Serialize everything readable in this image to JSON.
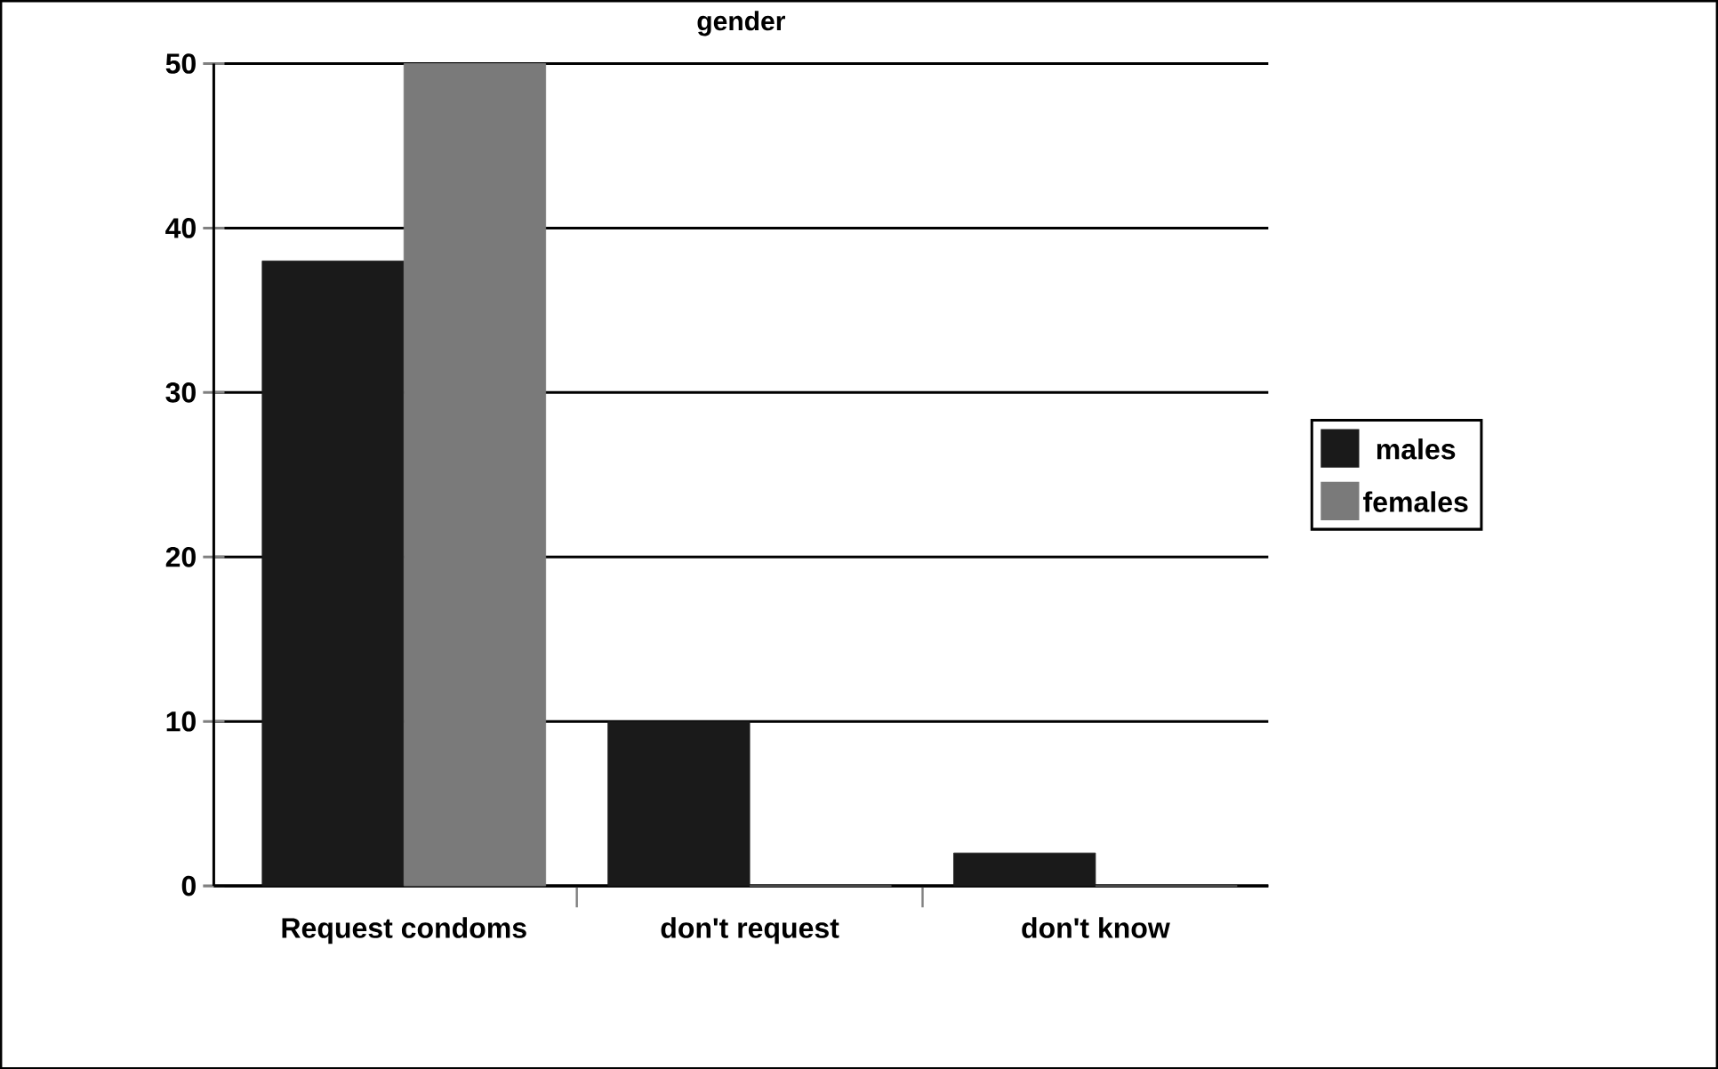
{
  "chart_data": {
    "type": "bar",
    "title": "gender",
    "categories": [
      "Request condoms",
      "don't request",
      "don't know"
    ],
    "series": [
      {
        "name": "males",
        "color": "#1a1a1a",
        "values": [
          38,
          10,
          2
        ]
      },
      {
        "name": "females",
        "color": "#7a7a7a",
        "values": [
          50,
          0,
          0
        ]
      }
    ],
    "ylim": [
      0,
      50
    ],
    "yticks": [
      0,
      10,
      20,
      30,
      40,
      50
    ],
    "grid": "y",
    "legend": "right"
  }
}
